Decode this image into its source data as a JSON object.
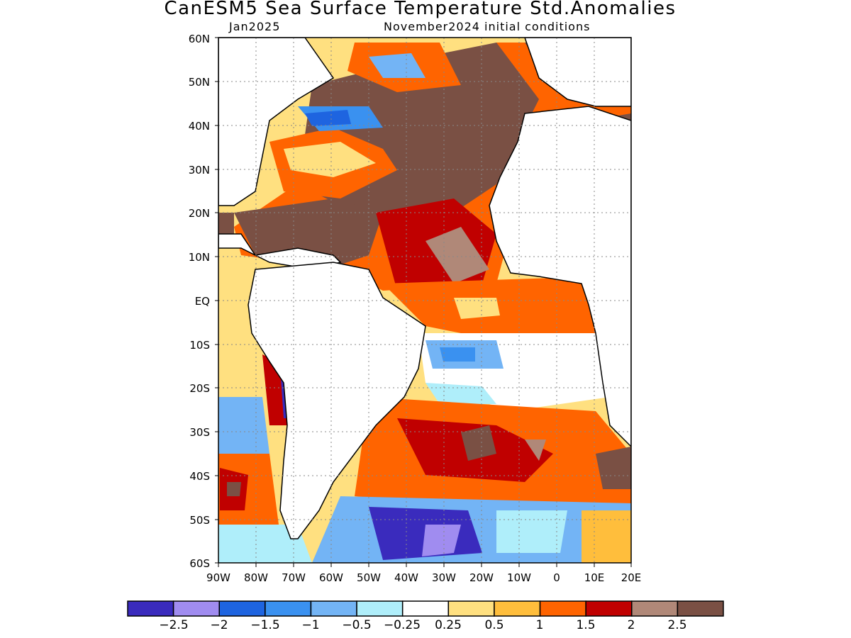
{
  "title": "CanESM5 Sea Surface Temperature Std.Anomalies",
  "subtitle_left": "Jan2025",
  "subtitle_right": "November2024 initial conditions",
  "map": {
    "lon_range": [
      -90,
      20
    ],
    "lat_range": [
      -60,
      60
    ],
    "lat_labels": [
      "60N",
      "50N",
      "40N",
      "30N",
      "20N",
      "10N",
      "EQ",
      "10S",
      "20S",
      "30S",
      "40S",
      "50S",
      "60S"
    ],
    "lon_labels": [
      "90W",
      "80W",
      "70W",
      "60W",
      "50W",
      "40W",
      "30W",
      "20W",
      "10W",
      "0",
      "10E",
      "20E"
    ]
  },
  "legend": {
    "labels": [
      "-2.5",
      "-2",
      "-1.5",
      "-1",
      "-0.5",
      "-0.25",
      "0.25",
      "0.5",
      "1",
      "1.5",
      "2",
      "2.5"
    ],
    "colors": [
      "#3a2bbd",
      "#a08cf0",
      "#1e64e0",
      "#3a91f0",
      "#73b4f5",
      "#afeefa",
      "#ffffff",
      "#ffe080",
      "#ffbe3c",
      "#ff6400",
      "#c00000",
      "#b08878",
      "#7a5044"
    ]
  }
}
